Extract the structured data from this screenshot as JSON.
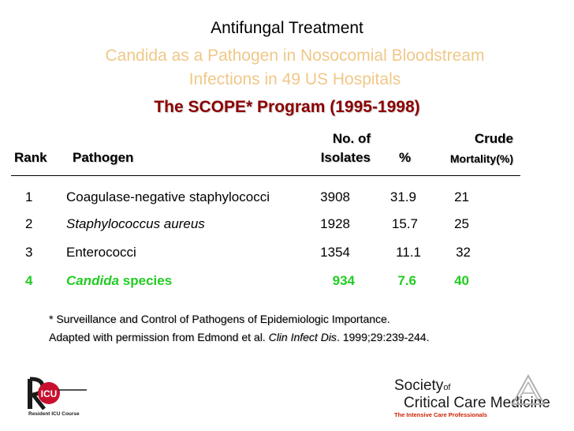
{
  "slide": {
    "title": "Antifungal Treatment",
    "subtitle_line1": "Candida as a Pathogen in Nosocomial Bloodstream",
    "subtitle_line2": "Infections in 49 US Hospitals",
    "program": "The SCOPE* Program (1995-1998)"
  },
  "table": {
    "headers": {
      "rank": "Rank",
      "pathogen": "Pathogen",
      "isolates_line1": "No. of",
      "isolates_line2": "Isolates",
      "percent": "%",
      "mortality_line1": "Crude",
      "mortality_line2": "Mortality(%)"
    },
    "rows": [
      {
        "rank": "1",
        "pathogen": "Coagulase-negative staphylococci",
        "isolates": "3908",
        "percent": "31.9",
        "mortality": "21"
      },
      {
        "rank": "2",
        "pathogen": "Staphylococcus aureus",
        "isolates": "1928",
        "percent": "15.7",
        "mortality": "25"
      },
      {
        "rank": "3",
        "pathogen": "Enterococci",
        "isolates": "1354",
        "percent": "11.1",
        "mortality": "32"
      },
      {
        "rank": "4",
        "pathogen_italic": "Candida",
        "pathogen_rest": "species",
        "isolates": "934",
        "percent": "7.6",
        "mortality": "40"
      }
    ]
  },
  "footnotes": {
    "line1": "* Surveillance and Control of Pathogens of Epidemiologic Importance.",
    "line2_prefix": "Adapted with permission from Edmond et al. ",
    "line2_journal": "Clin Infect Dis",
    "line2_suffix": ". 1999;29:239-244."
  },
  "logos": {
    "left_caption": "Resident ICU Course",
    "left_letters": "ICU",
    "right_society": "Society",
    "right_of": "of",
    "right_name": "Critical Care Medicine",
    "right_tagline": "The Intensive Care Professionals"
  },
  "colors": {
    "subtitle": "#f0c888",
    "program": "#8b0000",
    "highlight": "#22cc22",
    "tagline": "#cc2200"
  }
}
